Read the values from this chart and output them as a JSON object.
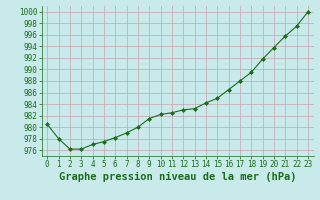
{
  "x": [
    0,
    1,
    2,
    3,
    4,
    5,
    6,
    7,
    8,
    9,
    10,
    11,
    12,
    13,
    14,
    15,
    16,
    17,
    18,
    19,
    20,
    21,
    22,
    23
  ],
  "y": [
    980.5,
    978.0,
    976.2,
    976.2,
    977.0,
    977.5,
    978.2,
    979.0,
    980.0,
    981.5,
    982.2,
    982.5,
    983.0,
    983.2,
    984.2,
    985.0,
    986.5,
    988.0,
    989.5,
    991.8,
    993.8,
    995.8,
    997.5,
    1000.0
  ],
  "line_color": "#1a6e1a",
  "marker_color": "#1a6e1a",
  "bg_color": "#c8eaea",
  "grid_color": "#c8a0b0",
  "xlabel": "Graphe pression niveau de la mer (hPa)",
  "ylim": [
    975.0,
    1001.0
  ],
  "xlim": [
    -0.5,
    23.5
  ],
  "yticks": [
    976,
    978,
    980,
    982,
    984,
    986,
    988,
    990,
    992,
    994,
    996,
    998,
    1000
  ],
  "xticks": [
    0,
    1,
    2,
    3,
    4,
    5,
    6,
    7,
    8,
    9,
    10,
    11,
    12,
    13,
    14,
    15,
    16,
    17,
    18,
    19,
    20,
    21,
    22,
    23
  ],
  "tick_fontsize": 5.5,
  "xlabel_fontsize": 7.5
}
